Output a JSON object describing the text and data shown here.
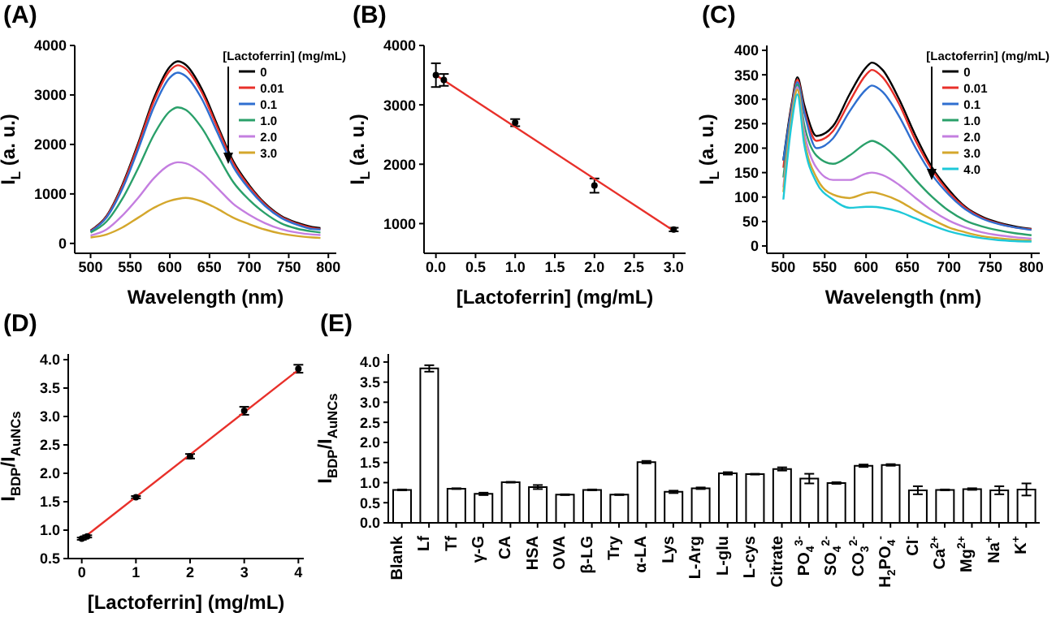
{
  "chart_data": [
    {
      "type": "line",
      "title": "(A)",
      "xlabel": "Wavelength (nm)",
      "ylabel": "I$_{L}$ (a. u.)",
      "legend": "top right",
      "legend_title": "[Lactoferrin] (mg/mL)",
      "x": [
        500,
        520,
        540,
        560,
        580,
        600,
        610,
        620,
        640,
        660,
        680,
        700,
        720,
        740,
        760,
        780,
        790
      ],
      "xlim": [
        480,
        810
      ],
      "xticks": [
        500,
        550,
        600,
        650,
        700,
        750,
        800
      ],
      "ylim": [
        -200,
        4000
      ],
      "yticks": [
        0,
        1000,
        2000,
        3000,
        4000
      ],
      "series": [
        {
          "name": "0",
          "color": "#000000",
          "values": [
            260,
            550,
            1180,
            2020,
            2940,
            3570,
            3680,
            3610,
            3130,
            2390,
            1660,
            1180,
            810,
            560,
            420,
            330,
            310
          ]
        },
        {
          "name": "0.01",
          "color": "#e8302a",
          "values": [
            250,
            540,
            1150,
            1980,
            2880,
            3490,
            3600,
            3530,
            3060,
            2340,
            1620,
            1150,
            790,
            540,
            400,
            310,
            290
          ]
        },
        {
          "name": "0.1",
          "color": "#2f6fd0",
          "values": [
            240,
            520,
            1100,
            1900,
            2760,
            3350,
            3450,
            3380,
            2930,
            2240,
            1550,
            1100,
            760,
            520,
            380,
            290,
            280
          ]
        },
        {
          "name": "1.0",
          "color": "#2aa06a",
          "values": [
            220,
            440,
            900,
            1520,
            2200,
            2670,
            2750,
            2700,
            2340,
            1790,
            1240,
            880,
            610,
            410,
            300,
            240,
            220
          ]
        },
        {
          "name": "2.0",
          "color": "#c47ee0",
          "values": [
            160,
            280,
            560,
            920,
            1320,
            1590,
            1640,
            1620,
            1430,
            1120,
            800,
            580,
            410,
            290,
            220,
            180,
            170
          ]
        },
        {
          "name": "3.0",
          "color": "#d4a72c",
          "values": [
            120,
            180,
            320,
            520,
            720,
            860,
            900,
            920,
            850,
            700,
            520,
            390,
            280,
            200,
            150,
            120,
            110
          ]
        }
      ]
    },
    {
      "type": "scatter",
      "title": "(B)",
      "xlabel": "[Lactoferrin] (mg/mL)",
      "ylabel": "I$_{L}$ (a. u.)",
      "xlim": [
        -0.15,
        3.15
      ],
      "xticks": [
        {
          "value": 0,
          "label": "0.0"
        },
        0.5,
        {
          "value": 1,
          "label": "1.0"
        },
        1.5,
        {
          "value": 2,
          "label": "2.0"
        },
        2.5,
        {
          "value": 3,
          "label": "3.0"
        }
      ],
      "ylim": [
        500,
        4000
      ],
      "yticks": [
        1000,
        2000,
        3000,
        4000
      ],
      "series": [
        {
          "type": "scatter",
          "marker": "circle",
          "color": "#000000",
          "x": [
            0,
            0.1,
            1,
            2,
            3
          ],
          "values": [
            3500,
            3420,
            2700,
            1640,
            900
          ],
          "errors": [
            200,
            100,
            60,
            120,
            30
          ]
        },
        {
          "type": "line",
          "color": "#e8302a",
          "x": [
            0,
            3
          ],
          "values": [
            3500,
            880
          ]
        }
      ]
    },
    {
      "type": "line",
      "title": "(C)",
      "xlabel": "Wavelength (nm)",
      "ylabel": "I$_{L}$ (a. u.)",
      "legend": "top right",
      "legend_title": "[Lactoferrin] (mg/mL)",
      "x": [
        500,
        510,
        517,
        525,
        540,
        560,
        580,
        600,
        607,
        620,
        640,
        660,
        680,
        700,
        720,
        740,
        760,
        780,
        800
      ],
      "xlim": [
        480,
        810
      ],
      "xticks": [
        500,
        550,
        600,
        650,
        700,
        750,
        800
      ],
      "ylim": [
        -15,
        410
      ],
      "yticks": [
        0,
        50,
        100,
        150,
        200,
        250,
        300,
        350,
        400
      ],
      "series": [
        {
          "name": "0",
          "color": "#000000",
          "values": [
            175,
            290,
            345,
            290,
            225,
            245,
            310,
            365,
            375,
            360,
            300,
            225,
            160,
            115,
            80,
            60,
            48,
            40,
            35
          ]
        },
        {
          "name": "0.01",
          "color": "#e8302a",
          "values": [
            160,
            285,
            340,
            280,
            215,
            235,
            295,
            350,
            360,
            345,
            290,
            215,
            155,
            110,
            78,
            58,
            46,
            38,
            34
          ]
        },
        {
          "name": "0.1",
          "color": "#2f6fd0",
          "values": [
            175,
            280,
            335,
            275,
            200,
            220,
            275,
            320,
            328,
            315,
            265,
            200,
            145,
            105,
            75,
            56,
            45,
            38,
            33
          ]
        },
        {
          "name": "1.0",
          "color": "#2aa06a",
          "values": [
            140,
            270,
            330,
            250,
            185,
            168,
            185,
            210,
            215,
            205,
            175,
            135,
            100,
            72,
            52,
            40,
            32,
            26,
            22
          ]
        },
        {
          "name": "2.0",
          "color": "#c47ee0",
          "values": [
            120,
            265,
            325,
            235,
            160,
            135,
            135,
            148,
            150,
            145,
            125,
            98,
            72,
            52,
            38,
            28,
            22,
            18,
            15
          ]
        },
        {
          "name": "3.0",
          "color": "#d4a72c",
          "values": [
            110,
            260,
            320,
            220,
            140,
            105,
            98,
            108,
            110,
            105,
            92,
            72,
            54,
            38,
            28,
            20,
            16,
            13,
            11
          ]
        },
        {
          "name": "4.0",
          "color": "#1ec8d8",
          "values": [
            95,
            250,
            310,
            210,
            130,
            95,
            78,
            80,
            80,
            78,
            70,
            56,
            42,
            30,
            22,
            16,
            12,
            10,
            9
          ]
        }
      ]
    },
    {
      "type": "scatter",
      "title": "(D)",
      "xlabel": "[Lactoferrin] (mg/mL)",
      "ylabel": "I$_{BDP}$/I$_{AuNCs}$",
      "xlim": [
        -0.25,
        4.1
      ],
      "xticks": [
        0,
        1,
        2,
        3,
        4
      ],
      "ylim": [
        0.5,
        4.1
      ],
      "yticks": [
        0.5,
        {
          "value": 1,
          "label": "1.0"
        },
        1.5,
        {
          "value": 2,
          "label": "2.0"
        },
        2.5,
        {
          "value": 3,
          "label": "3.0"
        },
        3.5,
        {
          "value": 4,
          "label": "4.0"
        }
      ],
      "series": [
        {
          "type": "scatter",
          "marker": "circle",
          "color": "#000000",
          "x": [
            0,
            0.1,
            1,
            2,
            3,
            4
          ],
          "values": [
            0.85,
            0.89,
            1.58,
            2.3,
            3.1,
            3.84
          ],
          "errors": [
            0.02,
            0.02,
            0.02,
            0.04,
            0.07,
            0.07
          ]
        },
        {
          "type": "line",
          "color": "#e8302a",
          "x": [
            0,
            4
          ],
          "values": [
            0.84,
            3.82
          ]
        }
      ]
    },
    {
      "type": "bar",
      "title": "(E)",
      "ylabel": "I$_{BDP}$/I$_{AuNCs}$",
      "categories": [
        "Blank",
        "Lf",
        "Tf",
        "γ-G",
        "CA",
        "HSA",
        "OVA",
        "β-LG",
        "Try",
        "α-LA",
        "Lys",
        "L-Arg",
        "L-glu",
        "L-cys",
        "Citrate",
        "PO$_{4}$$^{3-}$",
        "SO$_{4}$$^{2-}$",
        "CO$_{3}$$^{2-}$",
        "H$_{2}$PO$_{4}$$^{-}$",
        "Cl$^{-}$",
        "Ca$^{2+}$",
        "Mg$^{2+}$",
        "Na$^{+}$",
        "K$^{+}$"
      ],
      "values": [
        0.82,
        3.84,
        0.85,
        0.72,
        1.01,
        0.89,
        0.7,
        0.82,
        0.7,
        1.51,
        0.77,
        0.86,
        1.23,
        1.21,
        1.34,
        1.1,
        0.99,
        1.42,
        1.44,
        0.81,
        0.82,
        0.84,
        0.81,
        0.83
      ],
      "errors": [
        0.01,
        0.08,
        0.01,
        0.03,
        0.01,
        0.05,
        0.01,
        0.01,
        0.01,
        0.03,
        0.03,
        0.02,
        0.03,
        0.01,
        0.04,
        0.12,
        0.02,
        0.03,
        0.02,
        0.1,
        0.01,
        0.02,
        0.1,
        0.15
      ],
      "color": "#ffffff",
      "ylim": [
        0,
        4.2
      ],
      "yticks": [
        {
          "value": 0,
          "label": "0.0"
        },
        0.5,
        {
          "value": 1,
          "label": "1.0"
        },
        1.5,
        {
          "value": 2,
          "label": "2.0"
        },
        2.5,
        {
          "value": 3,
          "label": "3.0"
        },
        3.5,
        {
          "value": 4,
          "label": "4.0"
        }
      ]
    }
  ]
}
